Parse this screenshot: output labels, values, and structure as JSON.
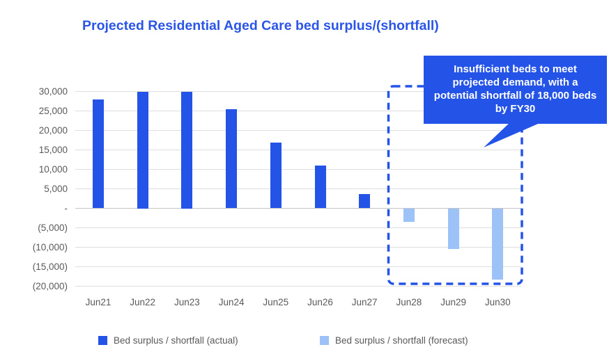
{
  "title": "Projected Residential Aged Care bed surplus/(shortfall)",
  "annotation": {
    "text": "Insufficient beds to meet projected demand, with a potential shortfall of 18,000 beds by FY30"
  },
  "legend": [
    {
      "label": "Bed surplus / shortfall (actual)",
      "color": "#2453E8"
    },
    {
      "label": "Bed surplus / shortfall (forecast)",
      "color": "#9DC2F8"
    }
  ],
  "colors": {
    "actual": "#2453E8",
    "forecast": "#9DC2F8",
    "title": "#2B55E6",
    "axis_text": "#595959",
    "gridline": "#dedede",
    "zero_line": "#c4c4c4",
    "callout_bg": "#2453E8",
    "callout_text": "#ffffff",
    "dashed_box": "#2453E8"
  },
  "chart_data": {
    "type": "bar",
    "title": "Projected Residential Aged Care bed surplus/(shortfall)",
    "categories": [
      "Jun21",
      "Jun22",
      "Jun23",
      "Jun24",
      "Jun25",
      "Jun26",
      "Jun27",
      "Jun28",
      "Jun29",
      "Jun30"
    ],
    "series": [
      {
        "name": "Bed surplus / shortfall (actual)",
        "color": "#2453E8",
        "values": [
          28000,
          30000,
          30000,
          25400,
          16800,
          11000,
          3700,
          null,
          null,
          null
        ]
      },
      {
        "name": "Bed surplus / shortfall (forecast)",
        "color": "#9DC2F8",
        "values": [
          null,
          null,
          null,
          null,
          null,
          null,
          null,
          -3400,
          -10400,
          -18300
        ]
      }
    ],
    "xlabel": "",
    "ylabel": "",
    "ylim": [
      -20000,
      30000
    ],
    "ytick_step": 5000,
    "ytick_values": [
      30000,
      25000,
      20000,
      15000,
      10000,
      5000,
      0,
      -5000,
      -10000,
      -15000,
      -20000
    ],
    "ytick_labels": [
      "30,000",
      "25,000",
      "20,000",
      "15,000",
      "10,000",
      "5,000",
      "-",
      "(5,000)",
      "(10,000)",
      "(15,000)",
      "(20,000)"
    ],
    "grid": true,
    "legend_position": "bottom",
    "highlight_region": {
      "categories": [
        "Jun28",
        "Jun29",
        "Jun30"
      ],
      "style": "dashed-box",
      "note": "Insufficient beds to meet projected demand, with a potential shortfall of 18,000 beds by FY30"
    }
  }
}
